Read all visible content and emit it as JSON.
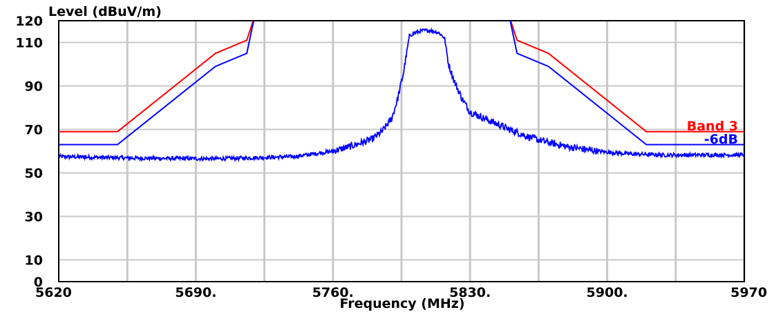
{
  "chart_data": {
    "type": "line",
    "title": "",
    "ylabel": "Level (dBuV/m)",
    "xlabel": "Frequency (MHz)",
    "xlim": [
      5620,
      5970
    ],
    "ylim": [
      0,
      120
    ],
    "x_ticks": [
      5620,
      5690,
      5760,
      5830,
      5900,
      5970
    ],
    "x_tick_labels": [
      "5620",
      "5690.",
      "5760.",
      "5830.",
      "5900.",
      "5970"
    ],
    "y_ticks": [
      0,
      10,
      30,
      50,
      70,
      90,
      110,
      120
    ],
    "y_tick_labels": [
      "0",
      "10",
      "30",
      "50",
      "70",
      "90",
      "110",
      "120"
    ],
    "grid": true,
    "legend_position": "right",
    "series": [
      {
        "name": "Band 3",
        "color": "#ff0000",
        "style": "limit",
        "points": [
          [
            5620,
            69
          ],
          [
            5650,
            69
          ],
          [
            5700,
            105
          ],
          [
            5716,
            111
          ],
          [
            5720,
            122
          ],
          [
            5850,
            122
          ],
          [
            5854,
            111
          ],
          [
            5870,
            105
          ],
          [
            5920,
            69
          ],
          [
            5970,
            69
          ]
        ]
      },
      {
        "name": "-6dB",
        "color": "#0000ff",
        "style": "limit",
        "points": [
          [
            5620,
            63
          ],
          [
            5650,
            63
          ],
          [
            5700,
            99
          ],
          [
            5716,
            105
          ],
          [
            5720,
            122
          ],
          [
            5850,
            122
          ],
          [
            5854,
            105
          ],
          [
            5870,
            99
          ],
          [
            5920,
            63
          ],
          [
            5970,
            63
          ]
        ]
      },
      {
        "name": "",
        "color": "#0000ff",
        "style": "trace",
        "points": [
          [
            5620,
            57.5
          ],
          [
            5660,
            56.8
          ],
          [
            5700,
            56.5
          ],
          [
            5740,
            57.5
          ],
          [
            5760,
            60.0
          ],
          [
            5770,
            62.5
          ],
          [
            5780,
            65.5
          ],
          [
            5785,
            69.0
          ],
          [
            5790,
            75.0
          ],
          [
            5793,
            84.0
          ],
          [
            5796,
            96.0
          ],
          [
            5799,
            113.0
          ],
          [
            5802,
            114.5
          ],
          [
            5806,
            115.5
          ],
          [
            5810,
            115.5
          ],
          [
            5814,
            114.5
          ],
          [
            5817,
            112.0
          ],
          [
            5819,
            100.0
          ],
          [
            5822,
            92.0
          ],
          [
            5826,
            84.0
          ],
          [
            5830,
            78.0
          ],
          [
            5840,
            74.0
          ],
          [
            5850,
            70.0
          ],
          [
            5860,
            66.5
          ],
          [
            5870,
            64.0
          ],
          [
            5880,
            62.0
          ],
          [
            5895,
            60.0
          ],
          [
            5910,
            58.8
          ],
          [
            5930,
            58.2
          ],
          [
            5970,
            58.3
          ]
        ]
      }
    ]
  }
}
